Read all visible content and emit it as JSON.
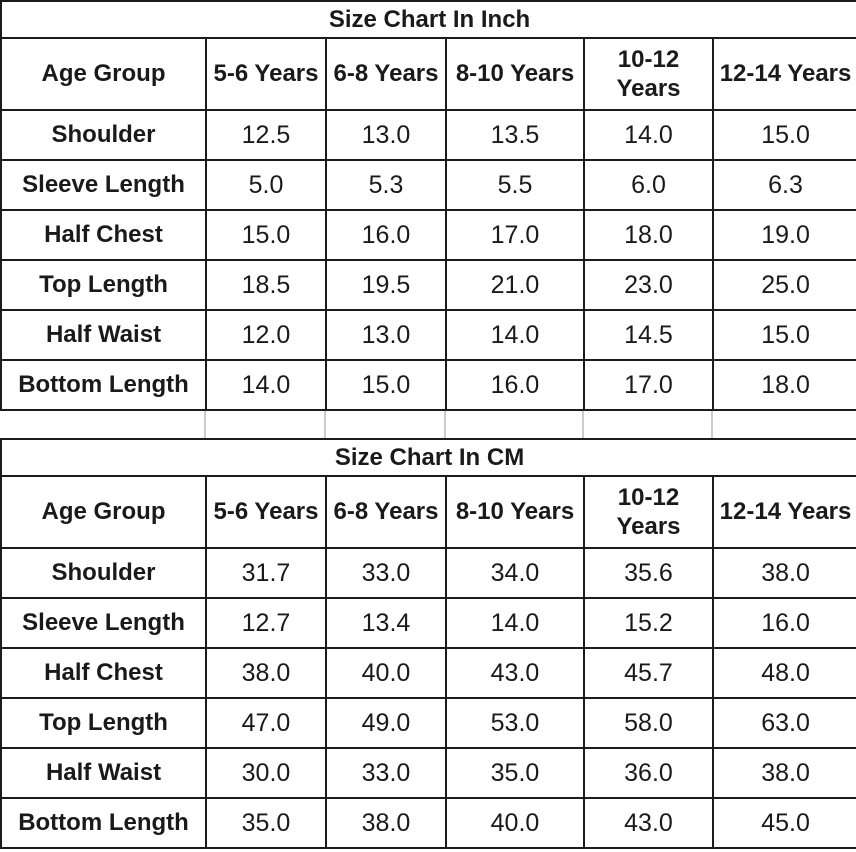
{
  "page": {
    "background": "#ffffff",
    "border_color": "#1c1c1c",
    "text_color": "#1a1a1a",
    "gap_line_color": "#cccccc"
  },
  "chart_data": [
    {
      "type": "table",
      "title": "Size Chart In Inch",
      "columns": [
        "Age Group",
        "5-6 Years",
        "6-8 Years",
        "8-10 Years",
        "10-12 Years",
        "12-14 Years"
      ],
      "rows": [
        {
          "label": "Shoulder",
          "values": [
            "12.5",
            "13.0",
            "13.5",
            "14.0",
            "15.0"
          ]
        },
        {
          "label": "Sleeve Length",
          "values": [
            "5.0",
            "5.3",
            "5.5",
            "6.0",
            "6.3"
          ]
        },
        {
          "label": "Half Chest",
          "values": [
            "15.0",
            "16.0",
            "17.0",
            "18.0",
            "19.0"
          ]
        },
        {
          "label": "Top Length",
          "values": [
            "18.5",
            "19.5",
            "21.0",
            "23.0",
            "25.0"
          ]
        },
        {
          "label": "Half Waist",
          "values": [
            "12.0",
            "13.0",
            "14.0",
            "14.5",
            "15.0"
          ]
        },
        {
          "label": "Bottom Length",
          "values": [
            "14.0",
            "15.0",
            "16.0",
            "17.0",
            "18.0"
          ]
        }
      ]
    },
    {
      "type": "table",
      "title": "Size Chart In CM",
      "columns": [
        "Age Group",
        "5-6 Years",
        "6-8 Years",
        "8-10 Years",
        "10-12 Years",
        "12-14 Years"
      ],
      "rows": [
        {
          "label": "Shoulder",
          "values": [
            "31.7",
            "33.0",
            "34.0",
            "35.6",
            "38.0"
          ]
        },
        {
          "label": "Sleeve Length",
          "values": [
            "12.7",
            "13.4",
            "14.0",
            "15.2",
            "16.0"
          ]
        },
        {
          "label": "Half Chest",
          "values": [
            "38.0",
            "40.0",
            "43.0",
            "45.7",
            "48.0"
          ]
        },
        {
          "label": "Top Length",
          "values": [
            "47.0",
            "49.0",
            "53.0",
            "58.0",
            "63.0"
          ]
        },
        {
          "label": "Half Waist",
          "values": [
            "30.0",
            "33.0",
            "35.0",
            "36.0",
            "38.0"
          ]
        },
        {
          "label": "Bottom Length",
          "values": [
            "35.0",
            "38.0",
            "40.0",
            "43.0",
            "45.0"
          ]
        }
      ]
    }
  ]
}
